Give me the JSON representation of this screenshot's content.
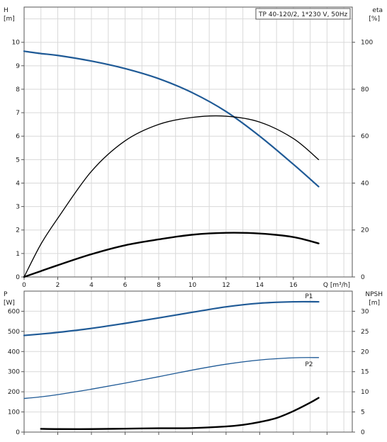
{
  "chart_data": [
    {
      "type": "line",
      "title": "TP 40-120/2, 1*230 V, 50Hz",
      "xlabel": "Q [m³/h]",
      "ylabel_left": [
        "H",
        "[m]"
      ],
      "ylabel_right": [
        "eta",
        "[%]"
      ],
      "xlim": [
        0,
        19.5
      ],
      "ylim_left": [
        0,
        11.5
      ],
      "ylim_right": [
        0,
        115
      ],
      "x_ticks": [
        0,
        2,
        4,
        6,
        8,
        10,
        12,
        14,
        16
      ],
      "y_ticks_left": [
        0,
        1,
        2,
        3,
        4,
        5,
        6,
        7,
        8,
        9,
        10
      ],
      "y_ticks_right": [
        0,
        20,
        40,
        60,
        80,
        100
      ],
      "grid": true,
      "series": [
        {
          "axis": "left",
          "color": "#1f5a96",
          "x": [
            0,
            1,
            2,
            4,
            6,
            8,
            10,
            12,
            14,
            16,
            17.5
          ],
          "values": [
            9.62,
            9.52,
            9.44,
            9.2,
            8.88,
            8.45,
            7.85,
            7.05,
            6.0,
            4.8,
            3.85
          ]
        },
        {
          "axis": "right",
          "color": "#000000",
          "x": [
            0,
            1,
            2,
            4,
            6,
            8,
            10,
            12,
            14,
            16,
            17.5
          ],
          "values": [
            0,
            14,
            25,
            45,
            58,
            65,
            68,
            68.5,
            66,
            59,
            50
          ]
        },
        {
          "axis": "left",
          "color": "#000000",
          "x": [
            0,
            1,
            2,
            4,
            6,
            8,
            10,
            12,
            14,
            16,
            17.5
          ],
          "values": [
            0,
            0.25,
            0.5,
            0.97,
            1.35,
            1.6,
            1.8,
            1.88,
            1.85,
            1.7,
            1.43
          ]
        }
      ]
    },
    {
      "type": "line",
      "xlabel": "",
      "ylabel_left": [
        "P",
        "[W]"
      ],
      "ylabel_right": [
        "NPSH",
        "[m]"
      ],
      "xlim": [
        0,
        19.5
      ],
      "ylim_left": [
        0,
        700
      ],
      "ylim_right": [
        0,
        35
      ],
      "y_ticks_left": [
        0,
        100,
        200,
        300,
        400,
        500,
        600
      ],
      "y_ticks_right": [
        0,
        5,
        10,
        15,
        20,
        25,
        30
      ],
      "grid": true,
      "series": [
        {
          "name": "P1",
          "axis": "left",
          "color": "#1f5a96",
          "x": [
            0,
            1,
            2,
            4,
            6,
            8,
            10,
            12,
            14,
            16,
            17.5
          ],
          "values": [
            480,
            487,
            495,
            515,
            540,
            567,
            595,
            622,
            640,
            647,
            647
          ]
        },
        {
          "name": "P2",
          "axis": "left",
          "color": "#1f5a96",
          "x": [
            0,
            1,
            2,
            4,
            6,
            8,
            10,
            12,
            14,
            16,
            17.5
          ],
          "values": [
            167,
            175,
            186,
            213,
            243,
            275,
            308,
            337,
            358,
            369,
            370
          ]
        },
        {
          "axis": "right",
          "color": "#000000",
          "x": [
            1,
            2,
            4,
            6,
            8,
            10,
            12,
            13,
            14,
            15,
            16,
            17,
            17.5
          ],
          "values": [
            0.8,
            0.75,
            0.75,
            0.85,
            0.95,
            1.0,
            1.4,
            1.8,
            2.5,
            3.5,
            5.2,
            7.3,
            8.5
          ]
        }
      ]
    }
  ]
}
